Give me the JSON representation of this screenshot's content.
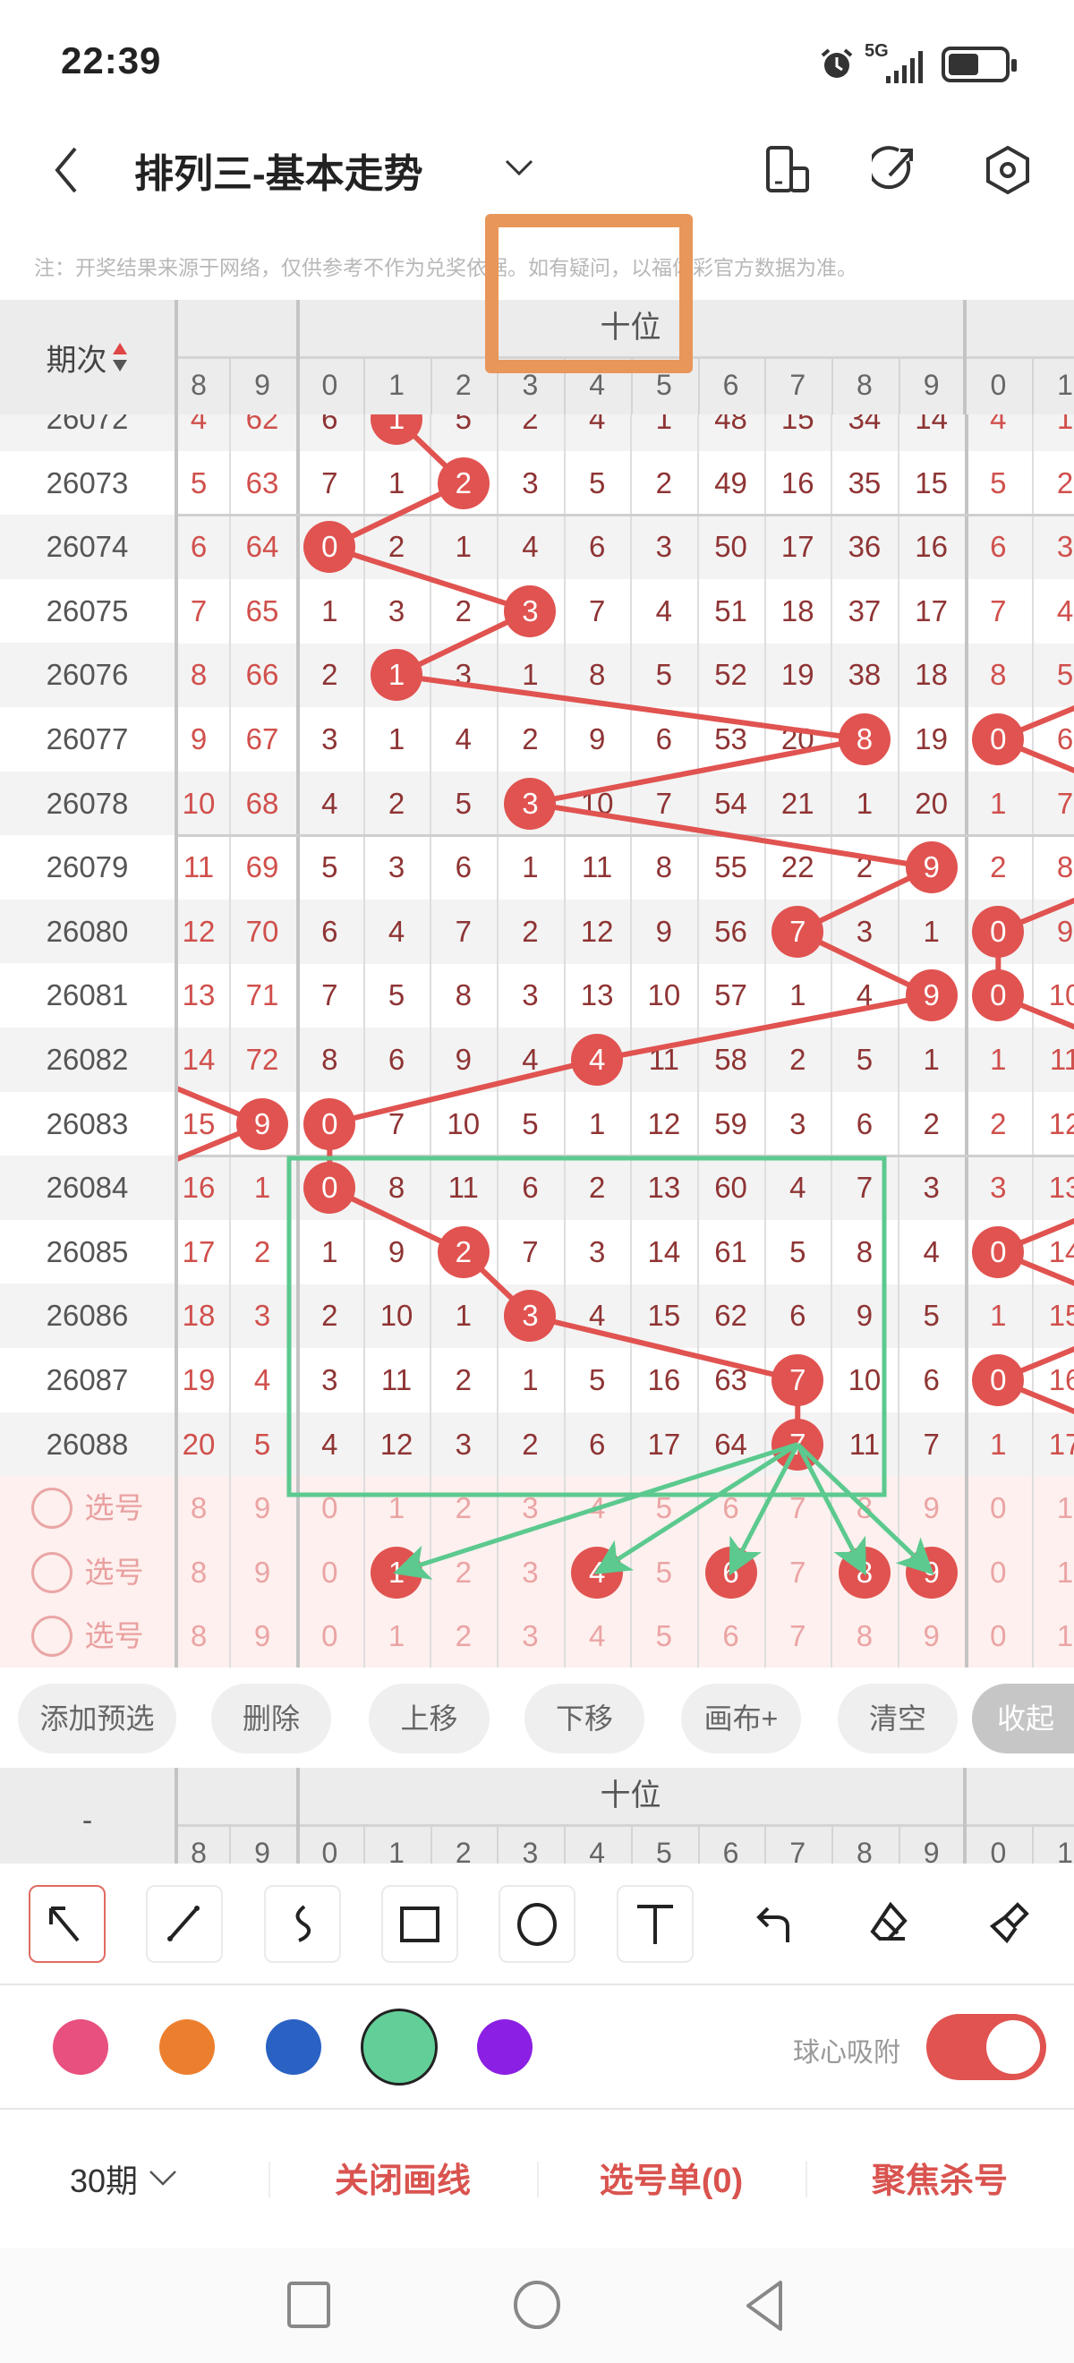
{
  "status_bar": {
    "time": "22:39",
    "network": "5G",
    "battery_level": 0.55
  },
  "title_bar": {
    "title": "排列三-基本走势"
  },
  "notice": "注：开奖结果来源于网络，仅供参考不作为兑奖依据。如有疑问，以福体彩官方数据为准。",
  "trend_table": {
    "period_header": "期次",
    "group_label": "十位",
    "columns": [
      "8",
      "9",
      "0",
      "1",
      "2",
      "3",
      "4",
      "5",
      "6",
      "7",
      "8",
      "9",
      "0",
      "1"
    ],
    "rows": [
      {
        "period": "26072",
        "cells": [
          "4",
          "62",
          "6",
          "1",
          "5",
          "2",
          "4",
          "1",
          "48",
          "15",
          "34",
          "14",
          "4",
          "1"
        ],
        "balls": [
          3
        ]
      },
      {
        "period": "26073",
        "cells": [
          "5",
          "63",
          "7",
          "1",
          "2",
          "3",
          "5",
          "2",
          "49",
          "16",
          "35",
          "15",
          "5",
          "2"
        ],
        "balls": [
          4
        ]
      },
      {
        "period": "26074",
        "cells": [
          "6",
          "64",
          "0",
          "2",
          "1",
          "4",
          "6",
          "3",
          "50",
          "17",
          "36",
          "16",
          "6",
          "3"
        ],
        "balls": [
          2
        ]
      },
      {
        "period": "26075",
        "cells": [
          "7",
          "65",
          "1",
          "3",
          "2",
          "3",
          "7",
          "4",
          "51",
          "18",
          "37",
          "17",
          "7",
          "4"
        ],
        "balls": [
          5
        ]
      },
      {
        "period": "26076",
        "cells": [
          "8",
          "66",
          "2",
          "1",
          "3",
          "1",
          "8",
          "5",
          "52",
          "19",
          "38",
          "18",
          "8",
          "5"
        ],
        "balls": [
          3
        ]
      },
      {
        "period": "26077",
        "cells": [
          "9",
          "67",
          "3",
          "1",
          "4",
          "2",
          "9",
          "6",
          "53",
          "20",
          "8",
          "19",
          "0",
          "6"
        ],
        "balls": [
          10,
          12
        ]
      },
      {
        "period": "26078",
        "cells": [
          "10",
          "68",
          "4",
          "2",
          "5",
          "3",
          "10",
          "7",
          "54",
          "21",
          "1",
          "20",
          "1",
          "7"
        ],
        "balls": [
          5
        ]
      },
      {
        "period": "26079",
        "cells": [
          "11",
          "69",
          "5",
          "3",
          "6",
          "1",
          "11",
          "8",
          "55",
          "22",
          "2",
          "9",
          "2",
          "8"
        ],
        "balls": [
          11
        ]
      },
      {
        "period": "26080",
        "cells": [
          "12",
          "70",
          "6",
          "4",
          "7",
          "2",
          "12",
          "9",
          "56",
          "7",
          "3",
          "1",
          "0",
          "9"
        ],
        "balls": [
          9,
          12
        ]
      },
      {
        "period": "26081",
        "cells": [
          "13",
          "71",
          "7",
          "5",
          "8",
          "3",
          "13",
          "10",
          "57",
          "1",
          "4",
          "9",
          "0",
          "10"
        ],
        "balls": [
          11,
          12
        ]
      },
      {
        "period": "26082",
        "cells": [
          "14",
          "72",
          "8",
          "6",
          "9",
          "4",
          "4",
          "11",
          "58",
          "2",
          "5",
          "1",
          "1",
          "11"
        ],
        "balls": [
          6
        ]
      },
      {
        "period": "26083",
        "cells": [
          "15",
          "9",
          "0",
          "7",
          "10",
          "5",
          "1",
          "12",
          "59",
          "3",
          "6",
          "2",
          "2",
          "12"
        ],
        "balls": [
          1,
          2
        ]
      },
      {
        "period": "26084",
        "cells": [
          "16",
          "1",
          "0",
          "8",
          "11",
          "6",
          "2",
          "13",
          "60",
          "4",
          "7",
          "3",
          "3",
          "13"
        ],
        "balls": [
          2
        ]
      },
      {
        "period": "26085",
        "cells": [
          "17",
          "2",
          "1",
          "9",
          "2",
          "7",
          "3",
          "14",
          "61",
          "5",
          "8",
          "4",
          "0",
          "14"
        ],
        "balls": [
          4,
          12
        ]
      },
      {
        "period": "26086",
        "cells": [
          "18",
          "3",
          "2",
          "10",
          "1",
          "3",
          "4",
          "15",
          "62",
          "6",
          "9",
          "5",
          "1",
          "15"
        ],
        "balls": [
          5
        ]
      },
      {
        "period": "26087",
        "cells": [
          "19",
          "4",
          "3",
          "11",
          "2",
          "1",
          "5",
          "16",
          "63",
          "7",
          "10",
          "6",
          "0",
          "16"
        ],
        "balls": [
          9,
          12
        ]
      },
      {
        "period": "26088",
        "cells": [
          "20",
          "5",
          "4",
          "12",
          "3",
          "2",
          "6",
          "17",
          "64",
          "7",
          "11",
          "7",
          "1",
          "17"
        ],
        "balls": [
          9
        ]
      }
    ],
    "select_rows": [
      {
        "label": "选号",
        "checked": false,
        "balls": []
      },
      {
        "label": "选号",
        "checked": false,
        "balls": [
          3,
          6,
          8,
          10,
          11
        ]
      },
      {
        "label": "选号",
        "checked": false,
        "balls": []
      }
    ]
  },
  "action_buttons": [
    "添加预选",
    "删除",
    "上移",
    "下移",
    "画布+",
    "清空",
    "收起"
  ],
  "second_header": {
    "period_header": "-",
    "group_label": "十位"
  },
  "tools": [
    {
      "icon": "arrow-icon",
      "selected": true
    },
    {
      "icon": "line-icon",
      "selected": false
    },
    {
      "icon": "curve-icon",
      "selected": false
    },
    {
      "icon": "rectangle-icon",
      "selected": false
    },
    {
      "icon": "circle-icon",
      "selected": false
    },
    {
      "icon": "text-icon",
      "selected": false
    },
    {
      "icon": "undo-icon"
    },
    {
      "icon": "eraser-icon"
    },
    {
      "icon": "brush-icon"
    }
  ],
  "palette": {
    "colors": [
      "#e8507f",
      "#ec7f2e",
      "#2a62c4",
      "#62cf98",
      "#8b1fe3"
    ],
    "selected": 3
  },
  "snap_toggle": {
    "label": "球心吸附",
    "on": true
  },
  "bottom_bar": {
    "period_select": "30期",
    "close_drawing": "关闭画线",
    "pick_list": "选号单(0)",
    "focus_kill": "聚焦杀号"
  },
  "colors": {
    "ball": "#e05350",
    "annotation_green": "#5cc98f",
    "highlight_orange": "#e8965a",
    "accent": "#d9534f"
  }
}
